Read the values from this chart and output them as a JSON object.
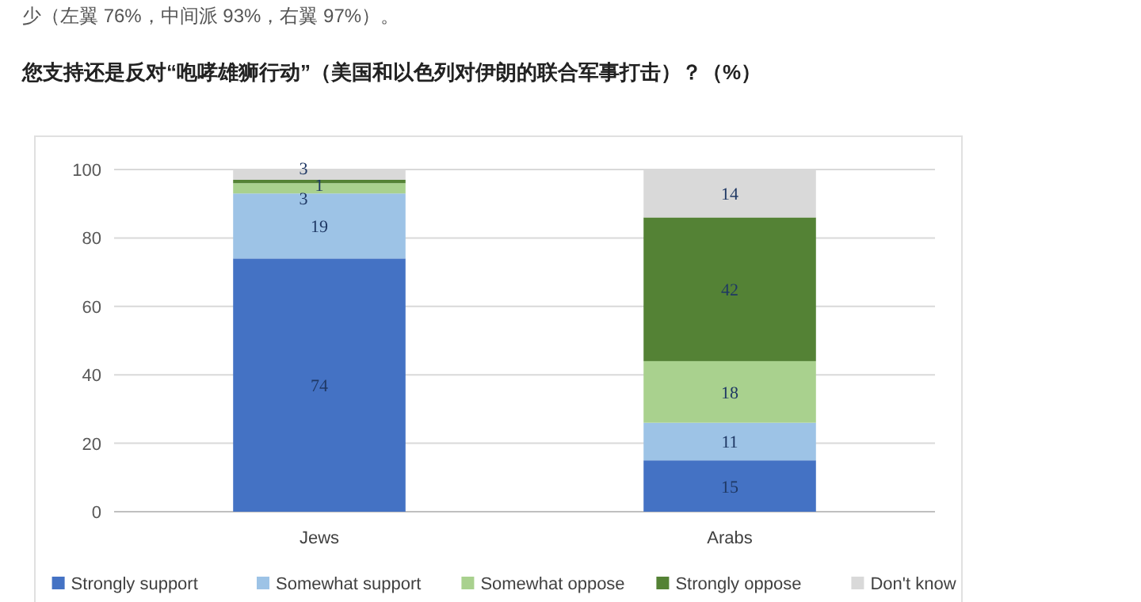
{
  "chart_data": {
    "type": "bar",
    "title": "您支持还是反对“咆哮雄狮行动”（美国和以色列对伊朗的联合军事打击）？（%）",
    "annotations": [
      "少（左翼 76%，中间派 93%，右翼 97%）。"
    ],
    "categories": [
      "Jews",
      "Arabs"
    ],
    "series": [
      {
        "name": "Strongly support",
        "color": "#4472c4",
        "values": [
          74,
          15
        ]
      },
      {
        "name": "Somewhat support",
        "color": "#9dc3e6",
        "values": [
          19,
          11
        ]
      },
      {
        "name": "Somewhat oppose",
        "color": "#a9d18e",
        "values": [
          3,
          18
        ]
      },
      {
        "name": "Strongly oppose",
        "color": "#548235",
        "values": [
          1,
          42
        ]
      },
      {
        "name": "Don't know",
        "color": "#d9d9d9",
        "values": [
          3,
          14
        ]
      }
    ],
    "stacked": true,
    "data_labels": true,
    "ylim": [
      0,
      100
    ],
    "yticks": [
      0,
      20,
      40,
      60,
      80,
      100
    ],
    "grid": "y",
    "legend": "bottom"
  }
}
